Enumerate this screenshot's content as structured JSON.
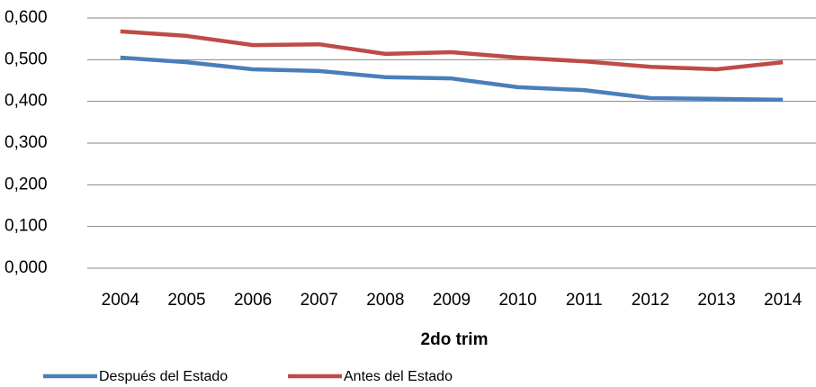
{
  "chart_data": {
    "type": "line",
    "x_label": "2do trim",
    "categories": [
      "2004",
      "2005",
      "2006",
      "2007",
      "2008",
      "2009",
      "2010",
      "2011",
      "2012",
      "2013",
      "2014"
    ],
    "series": [
      {
        "name": "Después del Estado",
        "color": "#4a7ebb",
        "values": [
          0.505,
          0.494,
          0.477,
          0.473,
          0.458,
          0.455,
          0.434,
          0.427,
          0.408,
          0.406,
          0.404
        ]
      },
      {
        "name": "Antes del Estado",
        "color": "#be4b48",
        "values": [
          0.568,
          0.557,
          0.535,
          0.537,
          0.514,
          0.518,
          0.505,
          0.496,
          0.483,
          0.477,
          0.494
        ]
      }
    ],
    "ylim": [
      0,
      0.6
    ],
    "yticks": [
      {
        "value": 0,
        "label": "0,000"
      },
      {
        "value": 0.1,
        "label": "0,100"
      },
      {
        "value": 0.2,
        "label": "0,200"
      },
      {
        "value": 0.3,
        "label": "0,300"
      },
      {
        "value": 0.4,
        "label": "0,400"
      },
      {
        "value": 0.5,
        "label": "0,500"
      },
      {
        "value": 0.6,
        "label": "0,600"
      }
    ],
    "grid": true
  }
}
